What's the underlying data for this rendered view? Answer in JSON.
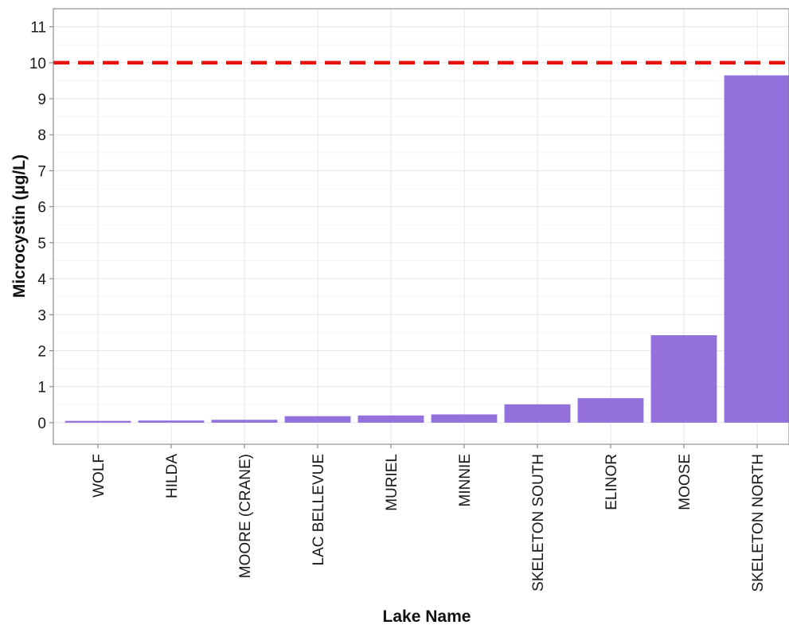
{
  "chart_data": {
    "type": "bar",
    "title": "",
    "xlabel": "Lake Name",
    "ylabel": "Microcystin (µg/L)",
    "categories": [
      "WOLF",
      "HILDA",
      "MOORE (CRANE)",
      "LAC BELLEVUE",
      "MURIEL",
      "MINNIE",
      "SKELETON SOUTH",
      "ELINOR",
      "MOOSE",
      "SKELETON NORTH"
    ],
    "values": [
      0.05,
      0.06,
      0.08,
      0.18,
      0.2,
      0.23,
      0.51,
      0.68,
      2.43,
      9.65
    ],
    "ylim": [
      -0.6,
      11.5
    ],
    "yticks": [
      0,
      1,
      2,
      3,
      4,
      5,
      6,
      7,
      8,
      9,
      10,
      11
    ],
    "reference_line": {
      "value": 10,
      "style": "dashed",
      "color": "#e8120c"
    },
    "bar_color": "#9370db",
    "grid": true,
    "legend": "none"
  }
}
